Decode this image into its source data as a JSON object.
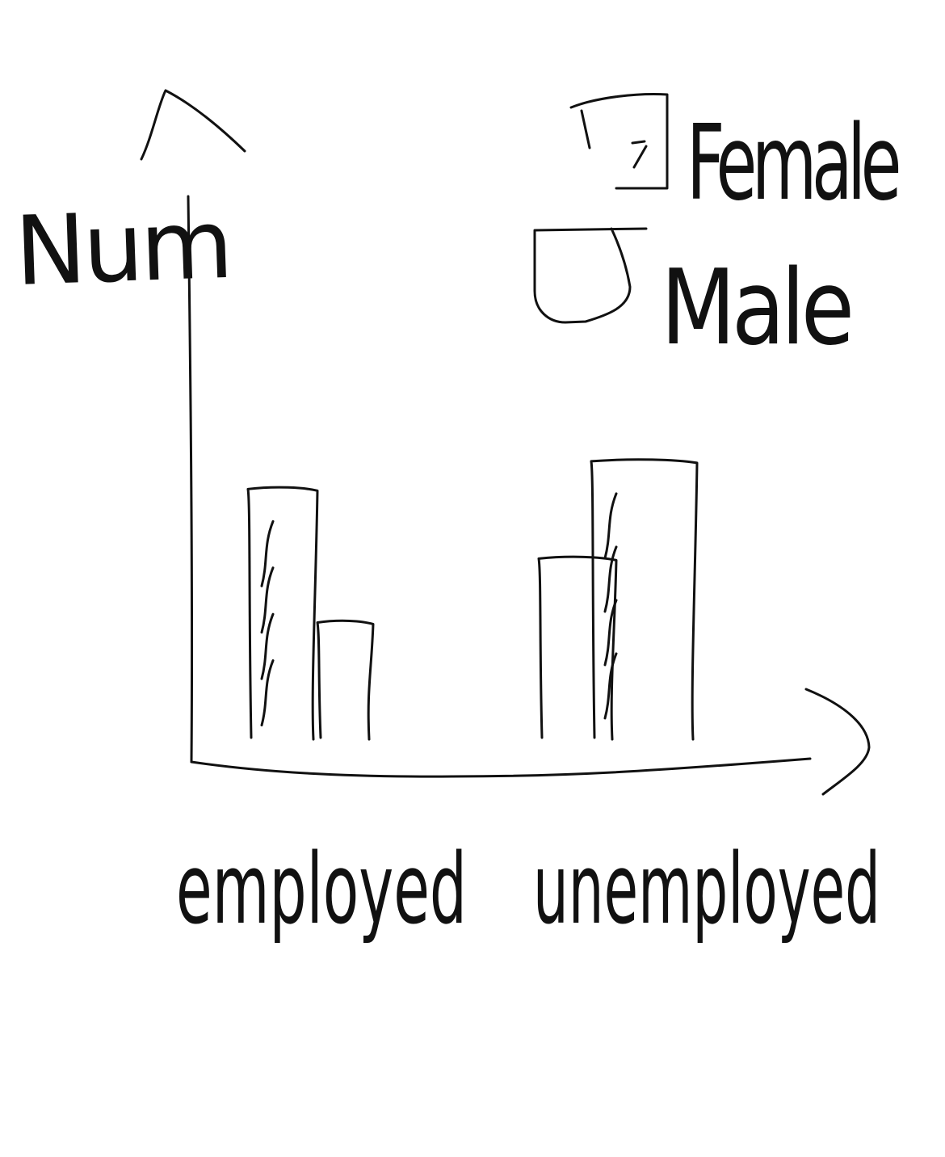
{
  "chart_data": {
    "type": "bar",
    "ylabel": "Num",
    "xlabel": "",
    "categories": [
      "employed",
      "unemployed"
    ],
    "series": [
      {
        "name": "Female",
        "pattern": "hatched",
        "values": [
          90,
          100
        ]
      },
      {
        "name": "Male",
        "pattern": "plain",
        "values": [
          42,
          65
        ]
      }
    ],
    "ylim": [
      0,
      140
    ],
    "grid": false,
    "legend": "top-right"
  },
  "colors": {
    "ink": "#111111",
    "background": "#ffffff"
  }
}
